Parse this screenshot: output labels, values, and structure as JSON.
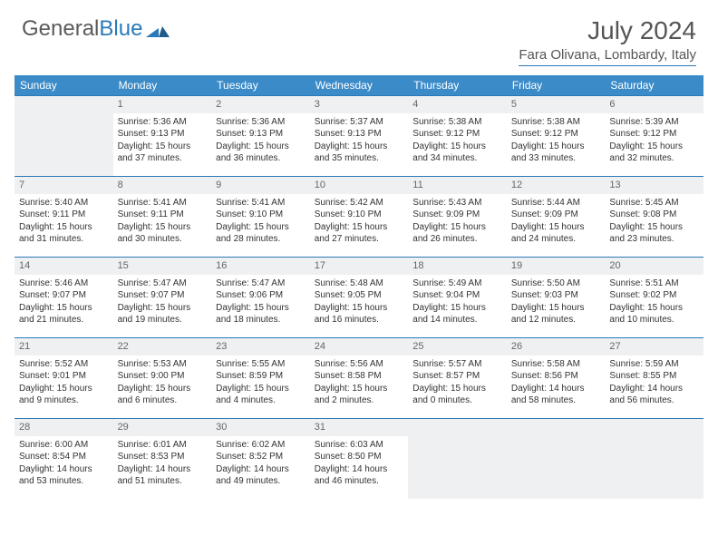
{
  "logo": {
    "part1": "General",
    "part2": "Blue"
  },
  "title": "July 2024",
  "location": "Fara Olivana, Lombardy, Italy",
  "colors": {
    "header_bg": "#3b8bc9",
    "border": "#2a7ab9",
    "shade": "#eef0f2",
    "text": "#333333"
  },
  "day_headers": [
    "Sunday",
    "Monday",
    "Tuesday",
    "Wednesday",
    "Thursday",
    "Friday",
    "Saturday"
  ],
  "weeks": [
    [
      {
        "n": "",
        "sr": "",
        "ss": "",
        "dl": ""
      },
      {
        "n": "1",
        "sr": "Sunrise: 5:36 AM",
        "ss": "Sunset: 9:13 PM",
        "dl": "Daylight: 15 hours and 37 minutes."
      },
      {
        "n": "2",
        "sr": "Sunrise: 5:36 AM",
        "ss": "Sunset: 9:13 PM",
        "dl": "Daylight: 15 hours and 36 minutes."
      },
      {
        "n": "3",
        "sr": "Sunrise: 5:37 AM",
        "ss": "Sunset: 9:13 PM",
        "dl": "Daylight: 15 hours and 35 minutes."
      },
      {
        "n": "4",
        "sr": "Sunrise: 5:38 AM",
        "ss": "Sunset: 9:12 PM",
        "dl": "Daylight: 15 hours and 34 minutes."
      },
      {
        "n": "5",
        "sr": "Sunrise: 5:38 AM",
        "ss": "Sunset: 9:12 PM",
        "dl": "Daylight: 15 hours and 33 minutes."
      },
      {
        "n": "6",
        "sr": "Sunrise: 5:39 AM",
        "ss": "Sunset: 9:12 PM",
        "dl": "Daylight: 15 hours and 32 minutes."
      }
    ],
    [
      {
        "n": "7",
        "sr": "Sunrise: 5:40 AM",
        "ss": "Sunset: 9:11 PM",
        "dl": "Daylight: 15 hours and 31 minutes."
      },
      {
        "n": "8",
        "sr": "Sunrise: 5:41 AM",
        "ss": "Sunset: 9:11 PM",
        "dl": "Daylight: 15 hours and 30 minutes."
      },
      {
        "n": "9",
        "sr": "Sunrise: 5:41 AM",
        "ss": "Sunset: 9:10 PM",
        "dl": "Daylight: 15 hours and 28 minutes."
      },
      {
        "n": "10",
        "sr": "Sunrise: 5:42 AM",
        "ss": "Sunset: 9:10 PM",
        "dl": "Daylight: 15 hours and 27 minutes."
      },
      {
        "n": "11",
        "sr": "Sunrise: 5:43 AM",
        "ss": "Sunset: 9:09 PM",
        "dl": "Daylight: 15 hours and 26 minutes."
      },
      {
        "n": "12",
        "sr": "Sunrise: 5:44 AM",
        "ss": "Sunset: 9:09 PM",
        "dl": "Daylight: 15 hours and 24 minutes."
      },
      {
        "n": "13",
        "sr": "Sunrise: 5:45 AM",
        "ss": "Sunset: 9:08 PM",
        "dl": "Daylight: 15 hours and 23 minutes."
      }
    ],
    [
      {
        "n": "14",
        "sr": "Sunrise: 5:46 AM",
        "ss": "Sunset: 9:07 PM",
        "dl": "Daylight: 15 hours and 21 minutes."
      },
      {
        "n": "15",
        "sr": "Sunrise: 5:47 AM",
        "ss": "Sunset: 9:07 PM",
        "dl": "Daylight: 15 hours and 19 minutes."
      },
      {
        "n": "16",
        "sr": "Sunrise: 5:47 AM",
        "ss": "Sunset: 9:06 PM",
        "dl": "Daylight: 15 hours and 18 minutes."
      },
      {
        "n": "17",
        "sr": "Sunrise: 5:48 AM",
        "ss": "Sunset: 9:05 PM",
        "dl": "Daylight: 15 hours and 16 minutes."
      },
      {
        "n": "18",
        "sr": "Sunrise: 5:49 AM",
        "ss": "Sunset: 9:04 PM",
        "dl": "Daylight: 15 hours and 14 minutes."
      },
      {
        "n": "19",
        "sr": "Sunrise: 5:50 AM",
        "ss": "Sunset: 9:03 PM",
        "dl": "Daylight: 15 hours and 12 minutes."
      },
      {
        "n": "20",
        "sr": "Sunrise: 5:51 AM",
        "ss": "Sunset: 9:02 PM",
        "dl": "Daylight: 15 hours and 10 minutes."
      }
    ],
    [
      {
        "n": "21",
        "sr": "Sunrise: 5:52 AM",
        "ss": "Sunset: 9:01 PM",
        "dl": "Daylight: 15 hours and 9 minutes."
      },
      {
        "n": "22",
        "sr": "Sunrise: 5:53 AM",
        "ss": "Sunset: 9:00 PM",
        "dl": "Daylight: 15 hours and 6 minutes."
      },
      {
        "n": "23",
        "sr": "Sunrise: 5:55 AM",
        "ss": "Sunset: 8:59 PM",
        "dl": "Daylight: 15 hours and 4 minutes."
      },
      {
        "n": "24",
        "sr": "Sunrise: 5:56 AM",
        "ss": "Sunset: 8:58 PM",
        "dl": "Daylight: 15 hours and 2 minutes."
      },
      {
        "n": "25",
        "sr": "Sunrise: 5:57 AM",
        "ss": "Sunset: 8:57 PM",
        "dl": "Daylight: 15 hours and 0 minutes."
      },
      {
        "n": "26",
        "sr": "Sunrise: 5:58 AM",
        "ss": "Sunset: 8:56 PM",
        "dl": "Daylight: 14 hours and 58 minutes."
      },
      {
        "n": "27",
        "sr": "Sunrise: 5:59 AM",
        "ss": "Sunset: 8:55 PM",
        "dl": "Daylight: 14 hours and 56 minutes."
      }
    ],
    [
      {
        "n": "28",
        "sr": "Sunrise: 6:00 AM",
        "ss": "Sunset: 8:54 PM",
        "dl": "Daylight: 14 hours and 53 minutes."
      },
      {
        "n": "29",
        "sr": "Sunrise: 6:01 AM",
        "ss": "Sunset: 8:53 PM",
        "dl": "Daylight: 14 hours and 51 minutes."
      },
      {
        "n": "30",
        "sr": "Sunrise: 6:02 AM",
        "ss": "Sunset: 8:52 PM",
        "dl": "Daylight: 14 hours and 49 minutes."
      },
      {
        "n": "31",
        "sr": "Sunrise: 6:03 AM",
        "ss": "Sunset: 8:50 PM",
        "dl": "Daylight: 14 hours and 46 minutes."
      },
      {
        "n": "",
        "sr": "",
        "ss": "",
        "dl": ""
      },
      {
        "n": "",
        "sr": "",
        "ss": "",
        "dl": ""
      },
      {
        "n": "",
        "sr": "",
        "ss": "",
        "dl": ""
      }
    ]
  ]
}
